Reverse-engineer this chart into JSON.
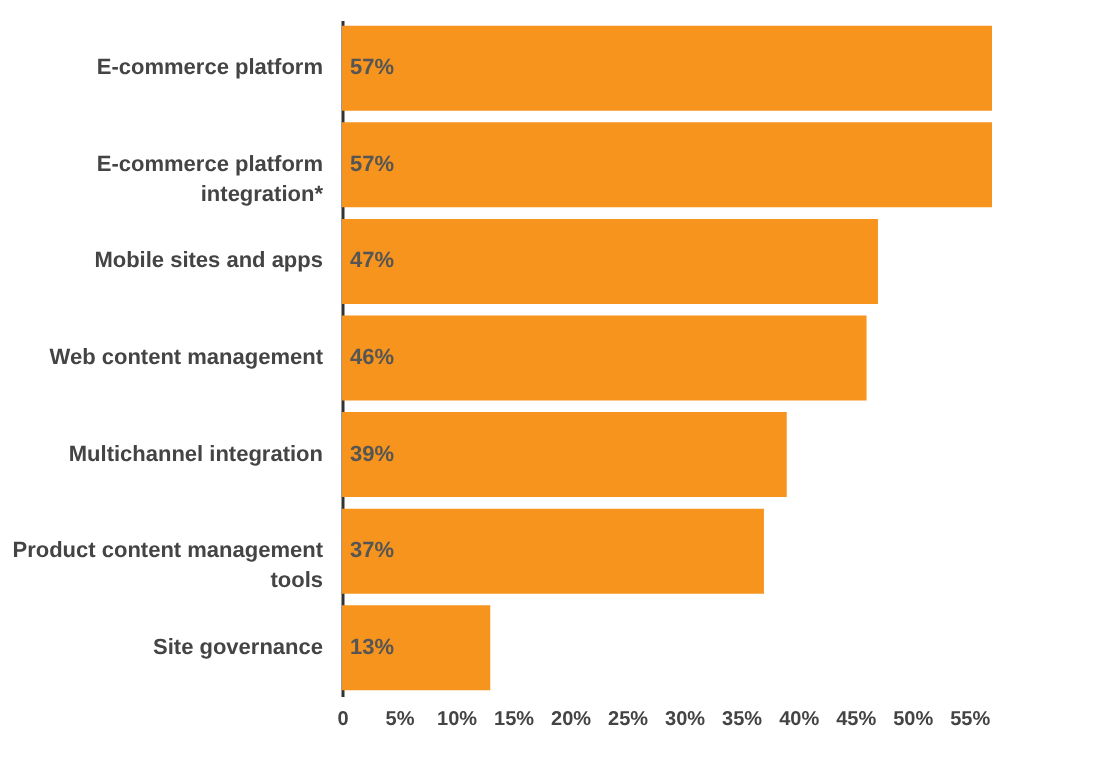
{
  "chart_data": {
    "type": "bar",
    "orientation": "horizontal",
    "categories": [
      "E-commerce platform",
      "E-commerce platform integration*",
      "Mobile sites and apps",
      "Web content management",
      "Multichannel integration",
      "Product content management tools",
      "Site governance"
    ],
    "values": [
      57,
      57,
      47,
      46,
      39,
      37,
      13
    ],
    "color": "#f7941d",
    "data_labels": true,
    "value_labels": [
      "57%",
      "57%",
      "47%",
      "46%",
      "39%",
      "37%",
      "13%"
    ],
    "xlim": [
      0,
      57
    ],
    "xticks": [
      0,
      {
        "value": 5,
        "label": "5%"
      },
      {
        "value": 10,
        "label": "10%"
      },
      {
        "value": 15,
        "label": "15%"
      },
      {
        "value": 20,
        "label": "20%"
      },
      {
        "value": 25,
        "label": "25%"
      },
      {
        "value": 30,
        "label": "30%"
      },
      {
        "value": 35,
        "label": "35%"
      },
      {
        "value": 40,
        "label": "40%"
      },
      {
        "value": 45,
        "label": "45%"
      },
      {
        "value": 50,
        "label": "50%"
      },
      {
        "value": 55,
        "label": "55%"
      }
    ],
    "grid": false
  }
}
